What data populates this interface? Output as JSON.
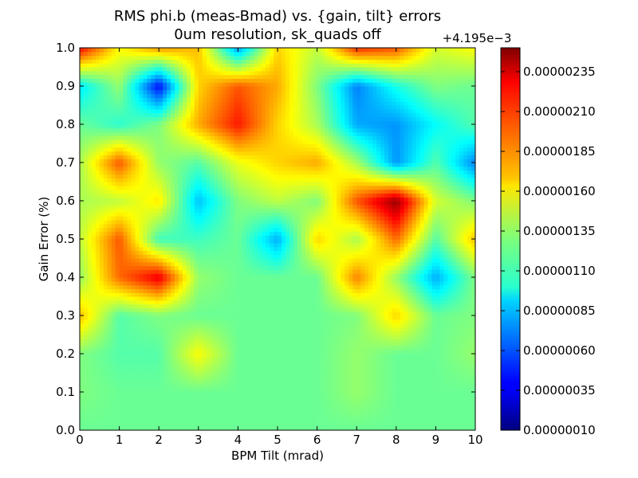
{
  "chart_data": {
    "type": "heatmap",
    "title_lines": [
      "RMS phi.b (meas-Bmad) vs. {gain, tilt} errors",
      "0um resolution, sk_quads off"
    ],
    "xlabel": "BPM Tilt (mrad)",
    "ylabel": "Gain Error (%)",
    "xlim": [
      0,
      10
    ],
    "ylim": [
      0,
      1.0
    ],
    "x_ticks": [
      "0",
      "1",
      "2",
      "3",
      "4",
      "5",
      "6",
      "7",
      "8",
      "9",
      "10"
    ],
    "y_ticks": [
      "0.0",
      "0.1",
      "0.2",
      "0.3",
      "0.4",
      "0.5",
      "0.6",
      "0.7",
      "0.8",
      "0.9",
      "1.0"
    ],
    "x": [
      0,
      1,
      2,
      3,
      4,
      5,
      6,
      7,
      8,
      9,
      10
    ],
    "y": [
      0.0,
      0.1,
      0.2,
      0.3,
      0.4,
      0.5,
      0.6,
      0.7,
      0.8,
      0.9,
      1.0
    ],
    "z_offset_label": "+4.195e−3",
    "z_units_note": "values below are offsets in 1e-8 units added to 4.195e-3",
    "colorbar_ticks": [
      "0.00000010",
      "0.00000035",
      "0.00000060",
      "0.00000085",
      "0.00000110",
      "0.00000135",
      "0.00000160",
      "0.00000185",
      "0.00000210",
      "0.00000235"
    ],
    "colorbar_range": [
      1e-07,
      2.5e-06
    ],
    "colormap": "jet",
    "grid": false,
    "z": [
      [
        125,
        125,
        125,
        125,
        125,
        125,
        125,
        125,
        125,
        125,
        125
      ],
      [
        130,
        125,
        125,
        125,
        125,
        125,
        125,
        135,
        125,
        125,
        125
      ],
      [
        130,
        120,
        120,
        160,
        125,
        125,
        125,
        135,
        125,
        125,
        135
      ],
      [
        175,
        120,
        130,
        125,
        125,
        125,
        125,
        130,
        170,
        125,
        130
      ],
      [
        135,
        195,
        225,
        135,
        125,
        125,
        125,
        190,
        135,
        80,
        130
      ],
      [
        145,
        200,
        115,
        115,
        125,
        80,
        170,
        140,
        195,
        120,
        175
      ],
      [
        140,
        145,
        165,
        85,
        130,
        145,
        130,
        200,
        245,
        150,
        130
      ],
      [
        140,
        200,
        135,
        120,
        155,
        170,
        180,
        140,
        75,
        120,
        70
      ],
      [
        125,
        110,
        130,
        180,
        215,
        170,
        140,
        80,
        75,
        100,
        120
      ],
      [
        95,
        135,
        40,
        170,
        200,
        180,
        130,
        70,
        105,
        130,
        125
      ],
      [
        220,
        160,
        185,
        175,
        75,
        170,
        145,
        210,
        200,
        150,
        160
      ]
    ]
  }
}
